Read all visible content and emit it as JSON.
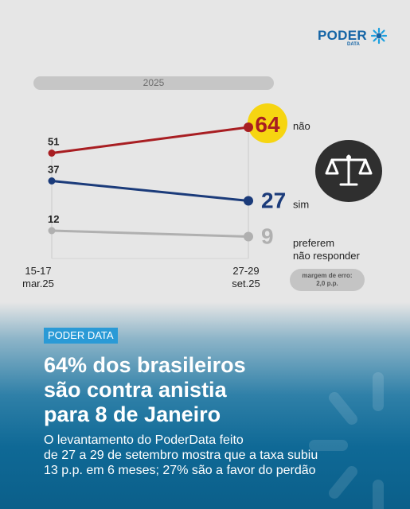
{
  "brand": {
    "name": "PODER",
    "sub": "DATA"
  },
  "chart_data": {
    "type": "line",
    "year_label": "2025",
    "x": [
      "15-17\nmar.25",
      "27-29\nset.25"
    ],
    "series": [
      {
        "name": "não",
        "values": [
          51,
          64
        ],
        "color": "#a81e22"
      },
      {
        "name": "sim",
        "values": [
          37,
          27
        ],
        "color": "#1b3b7a"
      },
      {
        "name": "preferem\nnão responder",
        "values": [
          12,
          9
        ],
        "color": "#b0b0b0"
      }
    ],
    "highlight_color": "#f6d511",
    "grid": false
  },
  "margin_note": {
    "line1": "margem de erro:",
    "line2": "2,0 p.p."
  },
  "tag": "PODER DATA",
  "headline": [
    "64% dos brasileiros",
    "são contra anistia",
    "para 8 de Janeiro"
  ],
  "summary": [
    "O levantamento do PoderData feito",
    "de 27 a 29 de setembro mostra que a taxa subiu",
    "13 p.p. em 6 meses; 27% são a favor do perdão"
  ],
  "icons": {
    "scale": "scale-of-justice-icon",
    "logo": "poderdata-logo-icon"
  }
}
